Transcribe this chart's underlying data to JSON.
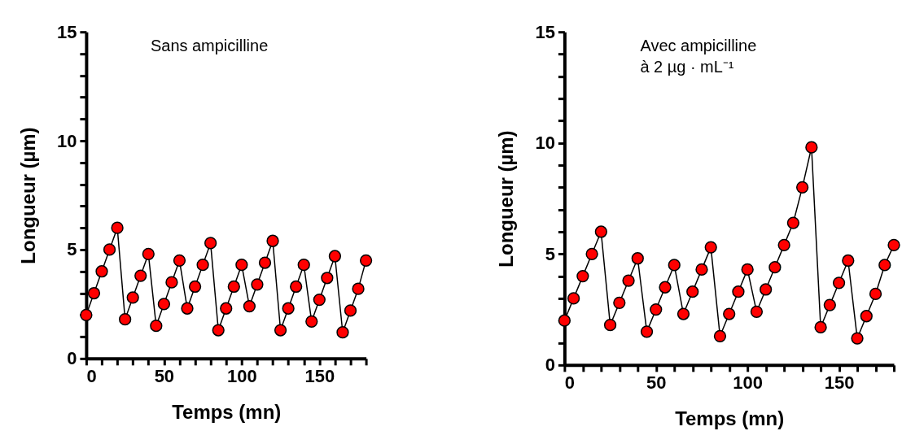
{
  "chart_data": [
    {
      "type": "line",
      "marker": "circle",
      "xlabel": "Temps (mn)",
      "ylabel": "Longueur (µm)",
      "annotations": [
        "Sans ampicilline"
      ],
      "x": [
        0,
        5,
        10,
        15,
        20,
        25,
        30,
        35,
        40,
        45,
        50,
        55,
        60,
        65,
        70,
        75,
        80,
        85,
        90,
        95,
        100,
        105,
        110,
        115,
        120,
        125,
        130,
        135,
        140,
        145,
        150,
        155,
        160,
        165,
        170,
        175,
        180
      ],
      "series": [
        {
          "color": "#ff0000",
          "values": [
            2.0,
            3.0,
            4.0,
            5.0,
            6.0,
            1.8,
            2.8,
            3.8,
            4.8,
            1.5,
            2.5,
            3.5,
            4.5,
            2.3,
            3.3,
            4.3,
            5.3,
            1.3,
            2.3,
            3.3,
            4.3,
            2.4,
            3.4,
            4.4,
            5.4,
            1.3,
            2.3,
            3.3,
            4.3,
            1.7,
            2.7,
            3.7,
            4.7,
            1.2,
            2.2,
            3.2,
            4.5
          ]
        }
      ],
      "xlim": [
        0,
        180
      ],
      "ylim": [
        0,
        15
      ],
      "xticks": [
        0,
        {
          "value": 10,
          "label": null
        },
        {
          "value": 20,
          "label": null
        },
        {
          "value": 30,
          "label": null
        },
        {
          "value": 40,
          "label": null
        },
        50,
        {
          "value": 60,
          "label": null
        },
        {
          "value": 70,
          "label": null
        },
        {
          "value": 80,
          "label": null
        },
        {
          "value": 90,
          "label": null
        },
        100,
        {
          "value": 110,
          "label": null
        },
        {
          "value": 120,
          "label": null
        },
        {
          "value": 130,
          "label": null
        },
        {
          "value": 140,
          "label": null
        },
        150,
        {
          "value": 160,
          "label": null
        },
        {
          "value": 170,
          "label": null
        },
        {
          "value": 180,
          "label": null
        }
      ],
      "yticks": [
        0,
        {
          "value": 1,
          "label": null
        },
        {
          "value": 2,
          "label": null
        },
        {
          "value": 3,
          "label": null
        },
        {
          "value": 4,
          "label": null
        },
        5,
        {
          "value": 6,
          "label": null
        },
        {
          "value": 7,
          "label": null
        },
        {
          "value": 8,
          "label": null
        },
        {
          "value": 9,
          "label": null
        },
        10,
        {
          "value": 11,
          "label": null
        },
        {
          "value": 12,
          "label": null
        },
        {
          "value": 13,
          "label": null
        },
        {
          "value": 14,
          "label": null
        },
        15
      ],
      "grid": false
    },
    {
      "type": "line",
      "marker": "circle",
      "xlabel": "Temps (mn)",
      "ylabel": "Longueur (µm)",
      "annotations": [
        "Avec ampicilline\nà 2 µg · mL⁻¹"
      ],
      "x": [
        0,
        5,
        10,
        15,
        20,
        25,
        30,
        35,
        40,
        45,
        50,
        55,
        60,
        65,
        70,
        75,
        80,
        85,
        90,
        95,
        100,
        105,
        110,
        115,
        120,
        125,
        130,
        135,
        140,
        145,
        150,
        155,
        160,
        165,
        170,
        175,
        180
      ],
      "series": [
        {
          "color": "#ff0000",
          "values": [
            2.0,
            3.0,
            4.0,
            5.0,
            6.0,
            1.8,
            2.8,
            3.8,
            4.8,
            1.5,
            2.5,
            3.5,
            4.5,
            2.3,
            3.3,
            4.3,
            5.3,
            1.3,
            2.3,
            3.3,
            4.3,
            2.4,
            3.4,
            4.4,
            5.4,
            6.4,
            8.0,
            9.8,
            1.7,
            2.7,
            3.7,
            4.7,
            1.2,
            2.2,
            3.2,
            4.5,
            5.4
          ]
        }
      ],
      "xlim": [
        0,
        180
      ],
      "ylim": [
        0,
        15
      ],
      "xticks": [
        0,
        {
          "value": 10,
          "label": null
        },
        {
          "value": 20,
          "label": null
        },
        {
          "value": 30,
          "label": null
        },
        {
          "value": 40,
          "label": null
        },
        50,
        {
          "value": 60,
          "label": null
        },
        {
          "value": 70,
          "label": null
        },
        {
          "value": 80,
          "label": null
        },
        {
          "value": 90,
          "label": null
        },
        100,
        {
          "value": 110,
          "label": null
        },
        {
          "value": 120,
          "label": null
        },
        {
          "value": 130,
          "label": null
        },
        {
          "value": 140,
          "label": null
        },
        150,
        {
          "value": 160,
          "label": null
        },
        {
          "value": 170,
          "label": null
        },
        {
          "value": 180,
          "label": null
        }
      ],
      "yticks": [
        0,
        {
          "value": 1,
          "label": null
        },
        {
          "value": 2,
          "label": null
        },
        {
          "value": 3,
          "label": null
        },
        {
          "value": 4,
          "label": null
        },
        5,
        {
          "value": 6,
          "label": null
        },
        {
          "value": 7,
          "label": null
        },
        {
          "value": 8,
          "label": null
        },
        {
          "value": 9,
          "label": null
        },
        10,
        {
          "value": 11,
          "label": null
        },
        {
          "value": 12,
          "label": null
        },
        {
          "value": 13,
          "label": null
        },
        {
          "value": 14,
          "label": null
        },
        15
      ],
      "grid": false
    }
  ]
}
